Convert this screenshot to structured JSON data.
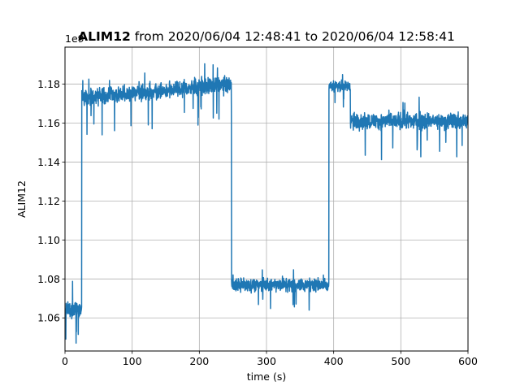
{
  "chart_data": {
    "type": "line",
    "title": {
      "bold_part": "ALIM12",
      "rest": " from 2020/06/04 12:48:41 to 2020/06/04 12:58:41"
    },
    "offset_text": "1e9",
    "xlabel": "time (s)",
    "ylabel": "ALIM12",
    "xlim": [
      0,
      600
    ],
    "ylim": [
      1.043,
      1.199
    ],
    "xticks": [
      0,
      100,
      200,
      300,
      400,
      500,
      600
    ],
    "xtick_labels": [
      "0",
      "100",
      "200",
      "300",
      "400",
      "500",
      "600"
    ],
    "yticks": [
      1.06,
      1.08,
      1.1,
      1.12,
      1.14,
      1.16,
      1.18
    ],
    "ytick_labels": [
      "1.06",
      "1.08",
      "1.10",
      "1.12",
      "1.14",
      "1.16",
      "1.18"
    ],
    "grid": true,
    "line_color": "#1f77b4",
    "segments": [
      {
        "x_start": 0,
        "x_end": 25,
        "mean": 1.064,
        "noise": 0.006
      },
      {
        "x_start": 25,
        "x_end": 248,
        "mean_start": 1.173,
        "mean_end": 1.18,
        "noise": 0.006
      },
      {
        "x_start": 248,
        "x_end": 393,
        "mean": 1.077,
        "noise": 0.005
      },
      {
        "x_start": 393,
        "x_end": 425,
        "mean": 1.179,
        "noise": 0.004
      },
      {
        "x_start": 425,
        "x_end": 600,
        "mean": 1.161,
        "noise": 0.006
      }
    ]
  }
}
